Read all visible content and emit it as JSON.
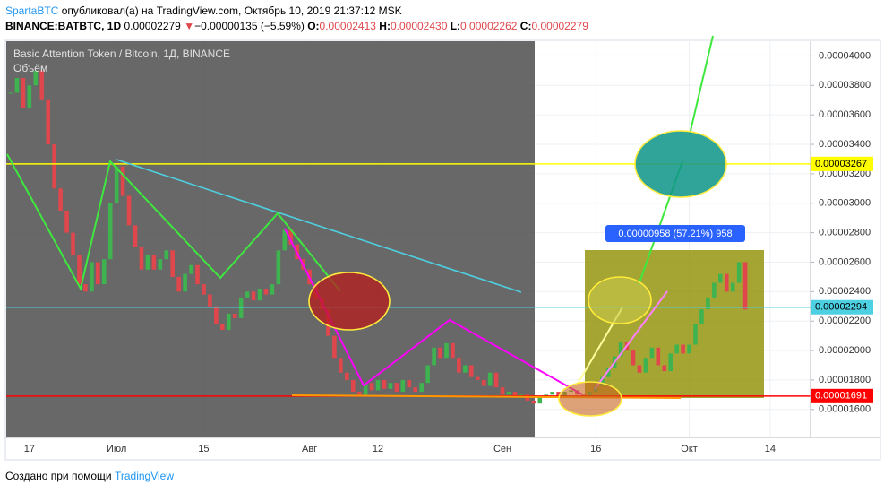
{
  "header": {
    "author": "SpartaBTC",
    "published": "опубликовал(а) на TradingView.com, Октябрь 10, 2019 21:37:12 MSK",
    "symbol": "BINANCE:BATBTC, 1D",
    "last": "0.00002279",
    "change_arrow": "▼",
    "change": "−0.00000135 (−5.59%)",
    "open_label": "O:",
    "open": "0.00002413",
    "high_label": "H:",
    "high": "0.00002430",
    "low_label": "L:",
    "low": "0.00002262",
    "close_label": "C:",
    "close": "0.00002279"
  },
  "footer": {
    "text": "Создано при помощи",
    "brand": "TradingView"
  },
  "chart_data": {
    "type": "candlestick",
    "title": "Basic Attention Token / Bitcoin, 1Д, BINANCE",
    "subtitle": "Объём",
    "categories": [
      null,
      null,
      null,
      "17",
      null,
      null,
      null,
      null,
      null,
      null,
      null,
      null,
      null,
      null,
      null,
      null,
      null,
      "Июл",
      null,
      null,
      null,
      null,
      null,
      null,
      null,
      null,
      null,
      null,
      null,
      null,
      null,
      "15",
      null,
      null,
      null,
      null,
      null,
      null,
      null,
      null,
      null,
      null,
      null,
      null,
      null,
      null,
      null,
      null,
      "Авг",
      null,
      null,
      null,
      null,
      null,
      null,
      null,
      null,
      null,
      null,
      "12",
      null,
      null,
      null,
      null,
      null,
      null,
      null,
      null,
      null,
      null,
      null,
      null,
      null,
      null,
      null,
      null,
      null,
      null,
      null,
      "Сен",
      null,
      null,
      null,
      null,
      null,
      null,
      null,
      null,
      null,
      null,
      null,
      null,
      null,
      null,
      "16",
      null,
      null,
      null,
      null,
      null,
      null,
      null,
      null,
      null,
      null,
      null,
      null,
      null,
      null,
      "Окт",
      null,
      null,
      null,
      null,
      null,
      null,
      null,
      null,
      null,
      null,
      null,
      null,
      "14"
    ],
    "close": [
      3.75e-05,
      3.85e-05,
      3.65e-05,
      3.8e-05,
      3.9e-05,
      3.7e-05,
      3.4e-05,
      3.1e-05,
      2.95e-05,
      2.8e-05,
      2.65e-05,
      2.45e-05,
      2.4e-05,
      2.6e-05,
      2.45e-05,
      2.62e-05,
      3e-05,
      3.25e-05,
      3.05e-05,
      2.85e-05,
      2.7e-05,
      2.55e-05,
      2.65e-05,
      2.55e-05,
      2.62e-05,
      2.68e-05,
      2.5e-05,
      2.4e-05,
      2.52e-05,
      2.58e-05,
      2.45e-05,
      2.38e-05,
      2.3e-05,
      2.18e-05,
      2.14e-05,
      2.25e-05,
      2.22e-05,
      2.36e-05,
      2.4e-05,
      2.34e-05,
      2.42e-05,
      2.38e-05,
      2.45e-05,
      2.68e-05,
      2.82e-05,
      2.72e-05,
      2.62e-05,
      2.55e-05,
      2.45e-05,
      2.35e-05,
      2.28e-05,
      2.1e-05,
      1.95e-05,
      1.85e-05,
      1.8e-05,
      1.72e-05,
      1.7e-05,
      1.78e-05,
      1.73e-05,
      1.8e-05,
      1.74e-05,
      1.78e-05,
      1.72e-05,
      1.8e-05,
      1.75e-05,
      1.72e-05,
      1.78e-05,
      1.9e-05,
      2.02e-05,
      1.95e-05,
      2.05e-05,
      1.95e-05,
      1.85e-05,
      1.9e-05,
      1.82e-05,
      1.8e-05,
      1.76e-05,
      1.85e-05,
      1.75e-05,
      1.7e-05,
      1.72e-05,
      1.68e-05,
      1.7e-05,
      1.66e-05,
      1.64e-05,
      1.68e-05,
      1.7e-05,
      1.72e-05,
      1.69e-05,
      1.72e-05,
      1.73e-05,
      1.7e-05,
      1.68e-05,
      1.72e-05,
      1.76e-05,
      1.82e-05,
      1.88e-05,
      1.96e-05,
      2.06e-05,
      2e-05,
      1.9e-05,
      1.85e-05,
      1.95e-05,
      2.02e-05,
      1.9e-05,
      1.86e-05,
      1.98e-05,
      2.04e-05,
      1.98e-05,
      2.04e-05,
      2.18e-05,
      2.28e-05,
      2.36e-05,
      2.46e-05,
      2.52e-05,
      2.4e-05,
      2.46e-05,
      2.6e-05,
      2.279e-05,
      null,
      null,
      null,
      null
    ],
    "up_color": "#3fb34f",
    "down_color": "#e0474c",
    "ylim": [
      1.41e-05,
      4.1e-05
    ],
    "yticks": [
      {
        "value": 1.6e-05,
        "label": "0.00001600"
      },
      {
        "value": 1.8e-05,
        "label": "0.00001800"
      },
      {
        "value": 2e-05,
        "label": "0.00002000"
      },
      {
        "value": 2.2e-05,
        "label": "0.00002200"
      },
      {
        "value": 2.4e-05,
        "label": "0.00002400"
      },
      {
        "value": 2.6e-05,
        "label": "0.00002600"
      },
      {
        "value": 2.8e-05,
        "label": "0.00002800"
      },
      {
        "value": 3e-05,
        "label": "0.00003000"
      },
      {
        "value": 3.2e-05,
        "label": "0.00003200"
      },
      {
        "value": 3.4e-05,
        "label": "0.00003400"
      },
      {
        "value": 3.6e-05,
        "label": "0.00003600"
      },
      {
        "value": 3.8e-05,
        "label": "0.00003800"
      },
      {
        "value": 4e-05,
        "label": "0.00004000"
      }
    ],
    "grid": true,
    "levels": [
      {
        "value": 3.267e-05,
        "color": "#ffff00",
        "text_color": "#000000"
      },
      {
        "value": 2.294e-05,
        "color": "#4dd0e1",
        "text_color": "#000000"
      },
      {
        "value": 1.691e-05,
        "color": "#ff0000",
        "text_color": "#ffffff"
      }
    ],
    "annotations": [
      "0.00000958 (57.21%) 958"
    ]
  }
}
